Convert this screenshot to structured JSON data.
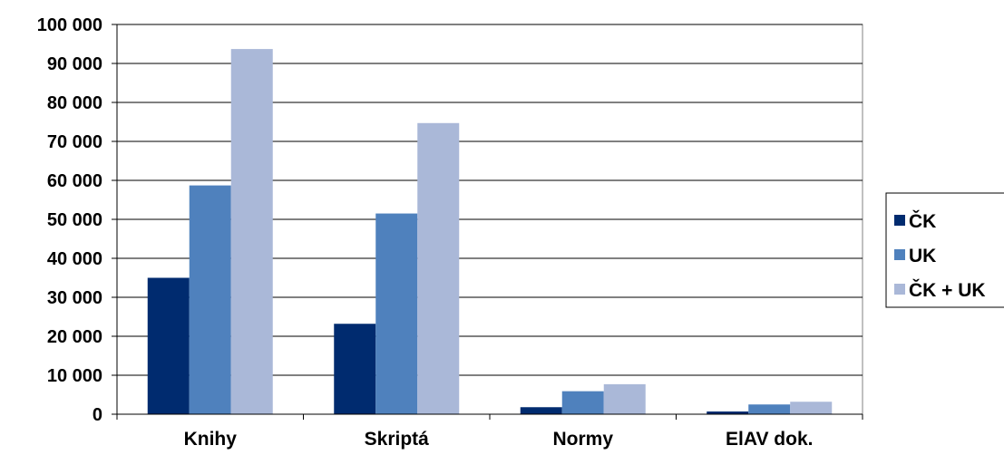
{
  "chart_data": {
    "type": "bar",
    "categories": [
      "Knihy",
      "Skriptá",
      "Normy",
      "ElAV dok."
    ],
    "series": [
      {
        "name": "ČK",
        "color": "#002B6F",
        "values": [
          35000,
          23200,
          1800,
          700
        ]
      },
      {
        "name": "UK",
        "color": "#4F81BD",
        "values": [
          58700,
          51500,
          5900,
          2500
        ]
      },
      {
        "name": "ČK + UK",
        "color": "#AAB8D8",
        "values": [
          93700,
          74700,
          7700,
          3200
        ]
      }
    ],
    "ylim": [
      0,
      100000
    ],
    "yticks": [
      {
        "value": 0,
        "label": "0"
      },
      {
        "value": 10000,
        "label": "10 000"
      },
      {
        "value": 20000,
        "label": "20 000"
      },
      {
        "value": 30000,
        "label": "30 000"
      },
      {
        "value": 40000,
        "label": "40 000"
      },
      {
        "value": 50000,
        "label": "50 000"
      },
      {
        "value": 60000,
        "label": "60 000"
      },
      {
        "value": 70000,
        "label": "70 000"
      },
      {
        "value": 80000,
        "label": "80 000"
      },
      {
        "value": 90000,
        "label": "90 000"
      },
      {
        "value": 100000,
        "label": "100 000"
      }
    ],
    "grid": true,
    "legend": "right"
  }
}
